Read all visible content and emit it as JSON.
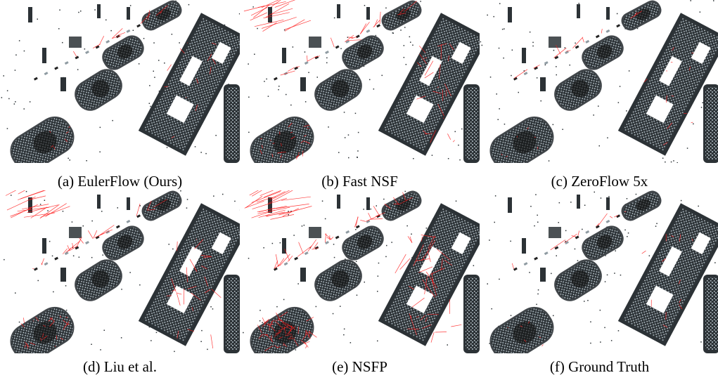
{
  "figure": {
    "panels": [
      {
        "caption": "(a) EulerFlow (Ours)",
        "method": "EulerFlow",
        "error_level": "low"
      },
      {
        "caption": "(b) Fast NSF",
        "method": "Fast NSF",
        "error_level": "medium"
      },
      {
        "caption": "(c) ZeroFlow 5x",
        "method": "ZeroFlow 5x",
        "error_level": "low"
      },
      {
        "caption": "(d) Liu et al.",
        "method": "Liu et al.",
        "error_level": "medium"
      },
      {
        "caption": "(e) NSFP",
        "method": "NSFP",
        "error_level": "high"
      },
      {
        "caption": "(f) Ground Truth",
        "method": "Ground Truth",
        "error_level": "low"
      }
    ],
    "colors": {
      "points": "#2c3236",
      "points_light": "#8f9ba2",
      "flow_vectors": "#ff1a1a",
      "background": "#ffffff"
    }
  }
}
